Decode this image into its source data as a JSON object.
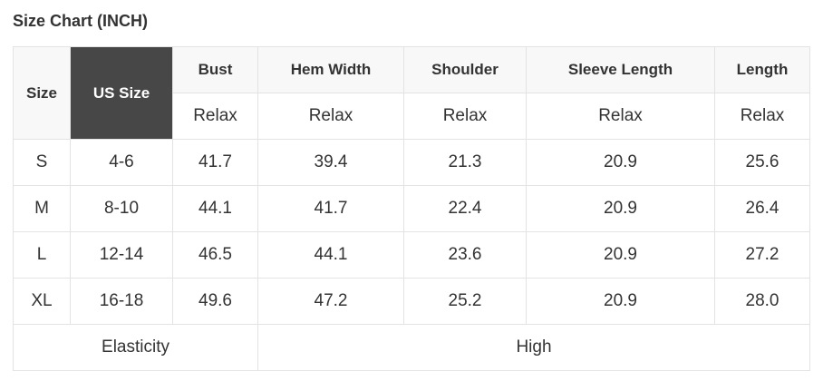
{
  "title": "Size Chart (INCH)",
  "headers": {
    "size": "Size",
    "us_size": "US Size",
    "columns": [
      "Bust",
      "Hem Width",
      "Shoulder",
      "Sleeve Length",
      "Length"
    ]
  },
  "fit_row": [
    "Relax",
    "Relax",
    "Relax",
    "Relax",
    "Relax"
  ],
  "rows": [
    [
      "S",
      "4-6",
      "41.7",
      "39.4",
      "21.3",
      "20.9",
      "25.6"
    ],
    [
      "M",
      "8-10",
      "44.1",
      "41.7",
      "22.4",
      "20.9",
      "26.4"
    ],
    [
      "L",
      "12-14",
      "46.5",
      "44.1",
      "23.6",
      "20.9",
      "27.2"
    ],
    [
      "XL",
      "16-18",
      "49.6",
      "47.2",
      "25.2",
      "20.9",
      "28.0"
    ]
  ],
  "elasticity": {
    "label": "Elasticity",
    "value": "High"
  },
  "colors": {
    "us_size_header_bg": "#474747",
    "header_bg": "#f8f8f8",
    "border": "#e3e3e3"
  }
}
